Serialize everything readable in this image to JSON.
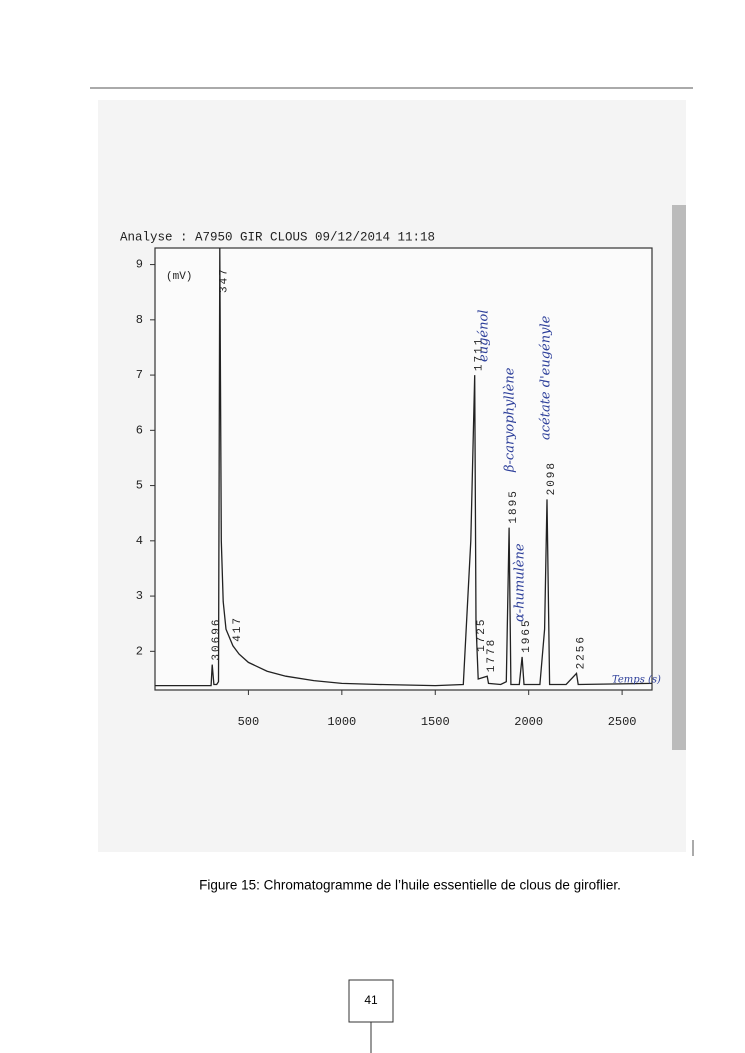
{
  "chart_data": {
    "type": "line",
    "title": "Analyse : A7950 GIR CLOUS 09/12/2014 11:18",
    "y_label": "(mV)",
    "x": [
      0,
      300,
      306,
      315,
      330,
      340,
      347,
      355,
      365,
      380,
      417,
      450,
      500,
      600,
      700,
      850,
      1000,
      1200,
      1500,
      1650,
      1690,
      1711,
      1718,
      1730,
      1778,
      1785,
      1850,
      1880,
      1895,
      1905,
      1950,
      1965,
      1975,
      2060,
      2085,
      2098,
      2112,
      2200,
      2256,
      2265,
      2660
    ],
    "values": [
      1.38,
      1.38,
      1.76,
      1.4,
      1.4,
      1.45,
      9.3,
      4.0,
      2.9,
      2.4,
      2.1,
      1.95,
      1.8,
      1.64,
      1.55,
      1.47,
      1.42,
      1.4,
      1.38,
      1.4,
      4.0,
      7.0,
      2.5,
      1.5,
      1.55,
      1.42,
      1.4,
      1.45,
      4.24,
      1.4,
      1.4,
      1.9,
      1.4,
      1.4,
      2.4,
      4.75,
      1.4,
      1.4,
      1.6,
      1.4,
      1.42
    ],
    "color": "#222222",
    "xlim": [
      0,
      2660
    ],
    "ylim": [
      1.3,
      9.3
    ],
    "xticks": [
      500,
      1000,
      1500,
      2000,
      2500
    ],
    "yticks": [
      2,
      3,
      4,
      5,
      6,
      7,
      8,
      9
    ],
    "peak_labels": [
      {
        "value": 306,
        "label": "30696"
      },
      347,
      417,
      1711,
      1725,
      1778,
      1895,
      1965,
      2098,
      2256
    ],
    "annotations": [
      "eugénol",
      "β-caryophyllène",
      "α-humulène",
      "acétate d'eugényle",
      "Temps (s)"
    ]
  },
  "caption": "Figure 15: Chromatogramme de l’huile essentielle de clous de giroflier.",
  "page_number": "41"
}
